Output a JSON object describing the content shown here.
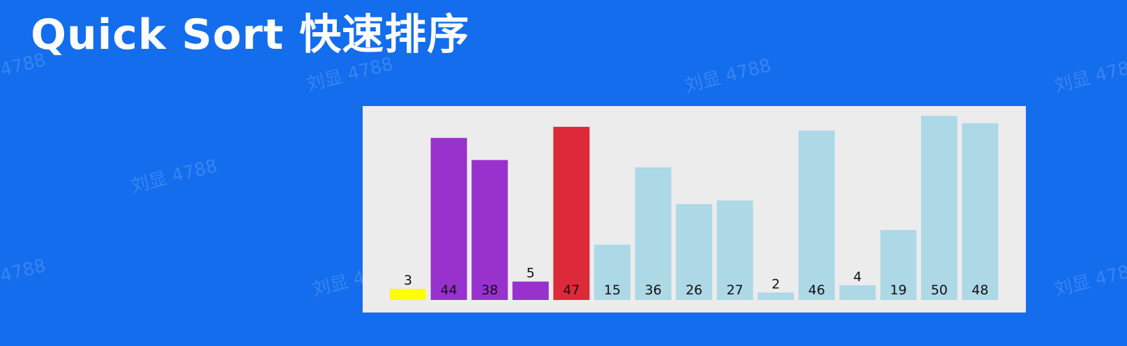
{
  "page": {
    "title": "Quick Sort 快速排序",
    "watermark_text": "刘显 4788"
  },
  "colors": {
    "background": "#136ded",
    "panel": "#ececec",
    "default_bar": "#add8e6",
    "current_bar": "#ffff00",
    "partition_bar": "#9932cc",
    "pivot_bar": "#dc2a3a",
    "label": "#111111"
  },
  "chart_data": {
    "type": "bar",
    "title": "",
    "xlabel": "",
    "ylabel": "",
    "ylim": [
      0,
      50
    ],
    "values": [
      3,
      44,
      38,
      5,
      47,
      15,
      36,
      26,
      27,
      2,
      46,
      4,
      19,
      50,
      48
    ],
    "states": [
      "current",
      "partition",
      "partition",
      "partition",
      "pivot",
      "default",
      "default",
      "default",
      "default",
      "default",
      "default",
      "default",
      "default",
      "default",
      "default"
    ],
    "labels": [
      "3",
      "44",
      "38",
      "5",
      "47",
      "15",
      "36",
      "26",
      "27",
      "2",
      "46",
      "4",
      "19",
      "50",
      "48"
    ]
  }
}
